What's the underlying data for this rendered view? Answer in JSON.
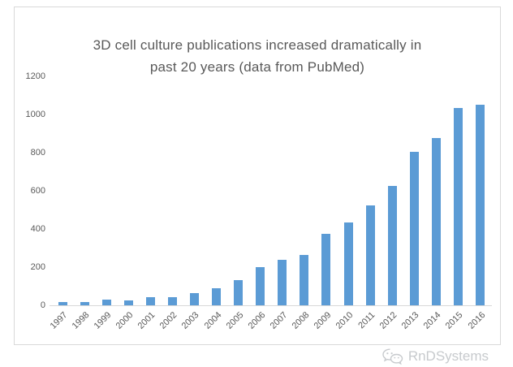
{
  "chart_data": {
    "type": "bar",
    "title": "3D cell culture publications increased dramatically in past 20 years (data from PubMed)",
    "title_lines": [
      "3D cell culture publications increased dramatically in",
      "past 20 years (data from PubMed)"
    ],
    "categories": [
      "1997",
      "1998",
      "1999",
      "2000",
      "2001",
      "2002",
      "2003",
      "2004",
      "2005",
      "2006",
      "2007",
      "2008",
      "2009",
      "2010",
      "2011",
      "2012",
      "2013",
      "2014",
      "2015",
      "2016"
    ],
    "values": [
      15,
      15,
      28,
      27,
      44,
      44,
      65,
      90,
      130,
      200,
      237,
      262,
      375,
      433,
      524,
      626,
      803,
      878,
      1032,
      1052
    ],
    "xlabel": "",
    "ylabel": "",
    "ylim": [
      0,
      1200
    ],
    "yticks": [
      0,
      200,
      400,
      600,
      800,
      1000,
      1200
    ],
    "grid": false,
    "legend": "none",
    "bar_color": "#5B9BD5"
  },
  "colors": {
    "bar": "#5B9BD5",
    "axis_text": "#595959",
    "title_text": "#595959",
    "border": "#D9D9D9",
    "watermark": "#C7CACD"
  },
  "watermark": {
    "brand": "RnDSystems",
    "icon": "wechat-icon"
  }
}
